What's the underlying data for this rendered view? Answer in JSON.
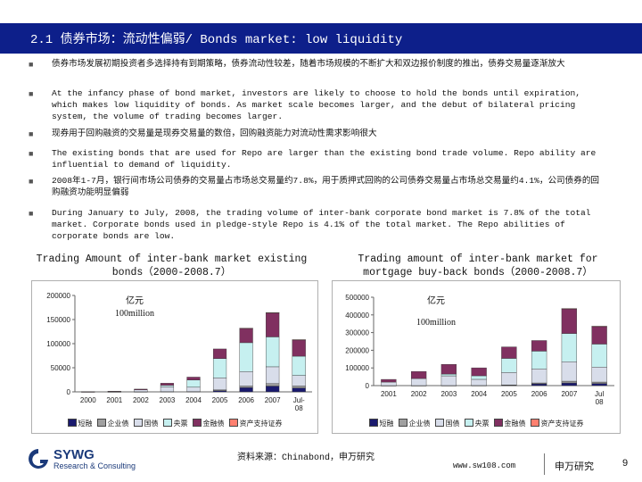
{
  "slide_title": "2.1  债券市场：流动性偏弱/ Bonds market: low liquidity",
  "bullets": [
    "债券市场发展初期投资者多选择持有到期策略，债券流动性较差，随着市场规模的不断扩大和双边报价制度的推出，债券交易量逐渐放大",
    "At the infancy phase of bond market, investors are likely to choose to hold the bonds until expiration, which makes low liquidity of bonds. As market scale becomes larger, and the debut of bilateral pricing system, the volume of trading becomes larger.",
    "现券用于回购融资的交易量是现券交易量的数倍，回购融资能力对流动性需求影响很大",
    "The existing bonds that are used for Repo are larger than the existing bond trade volume. Repo ability are influential to demand of liquidity.",
    "2008年1-7月，银行间市场公司债券的交易量占市场总交易量约7.8%，用于质押式回购的公司债券交易量占市场总交易量约4.1%，公司债券的回购融资功能明显偏弱",
    "During January to July, 2008, the trading volume of inter-bank corporate bond market is 7.8% of the total market. Corporate bonds used in pledge-style Repo is 4.1% of the total market. The Repo abilities of corporate bonds are low."
  ],
  "charts": [
    {
      "caption": "Trading Amount of inter-bank market existing bonds（2000-2008.7）",
      "unit_cn": "亿元",
      "unit_en": "100million",
      "chart_data": {
        "type": "bar",
        "stacked": true,
        "categories": [
          "2000",
          "2001",
          "2002",
          "2003",
          "2004",
          "2005",
          "2006",
          "2007",
          "Jul-08"
        ],
        "y_ticks": [
          "200000",
          "150000",
          "100000",
          "50000",
          "0"
        ],
        "ylim": [
          0,
          200000
        ],
        "series": [
          {
            "name": "短融",
            "color": "#1a1a6e",
            "values": [
              0,
              0,
              0,
              0,
              0,
              2500,
              9000,
              12000,
              8000
            ]
          },
          {
            "name": "企业债",
            "color": "#a0a0a0",
            "values": [
              50,
              100,
              200,
              400,
              600,
              1500,
              3000,
              5000,
              4000
            ]
          },
          {
            "name": "国债",
            "color": "#d8ddea",
            "values": [
              200,
              800,
              4000,
              10000,
              9000,
              25000,
              30000,
              35000,
              22000
            ]
          },
          {
            "name": "央票",
            "color": "#c6f0f0",
            "values": [
              0,
              0,
              0,
              3000,
              15000,
              40000,
              60000,
              62000,
              40000
            ]
          },
          {
            "name": "金融债",
            "color": "#803060",
            "values": [
              150,
              300,
              1500,
              4500,
              6000,
              20000,
              30000,
              50000,
              34000
            ]
          },
          {
            "name": "资产支持证券",
            "color": "#ff8070",
            "values": [
              0,
              0,
              0,
              0,
              0,
              0,
              100,
              400,
              300
            ]
          }
        ]
      }
    },
    {
      "caption": "Trading amount of inter-bank market for mortgage buy-back bonds（2000-2008.7）",
      "unit_cn": "亿元",
      "unit_en": "100million",
      "chart_data": {
        "type": "bar",
        "stacked": true,
        "categories": [
          "2001",
          "2002",
          "2003",
          "2004",
          "2005",
          "2006",
          "2007",
          "Jul 08"
        ],
        "y_ticks": [
          "500000",
          "400000",
          "300000",
          "200000",
          "100000",
          "0"
        ],
        "ylim": [
          0,
          500000
        ],
        "series": [
          {
            "name": "短融",
            "color": "#1a1a6e",
            "values": [
              0,
              0,
              0,
              0,
              2000,
              10000,
              15000,
              12000
            ]
          },
          {
            "name": "企业债",
            "color": "#a0a0a0",
            "values": [
              50,
              100,
              300,
              500,
              2000,
              5000,
              10000,
              8000
            ]
          },
          {
            "name": "国债",
            "color": "#d8ddea",
            "values": [
              20000,
              40000,
              55000,
              35000,
              70000,
              80000,
              110000,
              85000
            ]
          },
          {
            "name": "央票",
            "color": "#c6f0f0",
            "values": [
              0,
              0,
              10000,
              20000,
              80000,
              100000,
              160000,
              130000
            ]
          },
          {
            "name": "金融债",
            "color": "#803060",
            "values": [
              15000,
              40000,
              55000,
              45000,
              65000,
              60000,
              140000,
              100000
            ]
          },
          {
            "name": "资产支持证券",
            "color": "#ff8070",
            "values": [
              0,
              0,
              0,
              0,
              0,
              0,
              1000,
              1000
            ]
          }
        ]
      }
    }
  ],
  "source": "资料来源：Chinabond，申万研究",
  "logo_name": "SYWG",
  "logo_sub": "Research & Consulting",
  "url": "www.sw108.com",
  "brand": "申万研究",
  "page_number": "9"
}
